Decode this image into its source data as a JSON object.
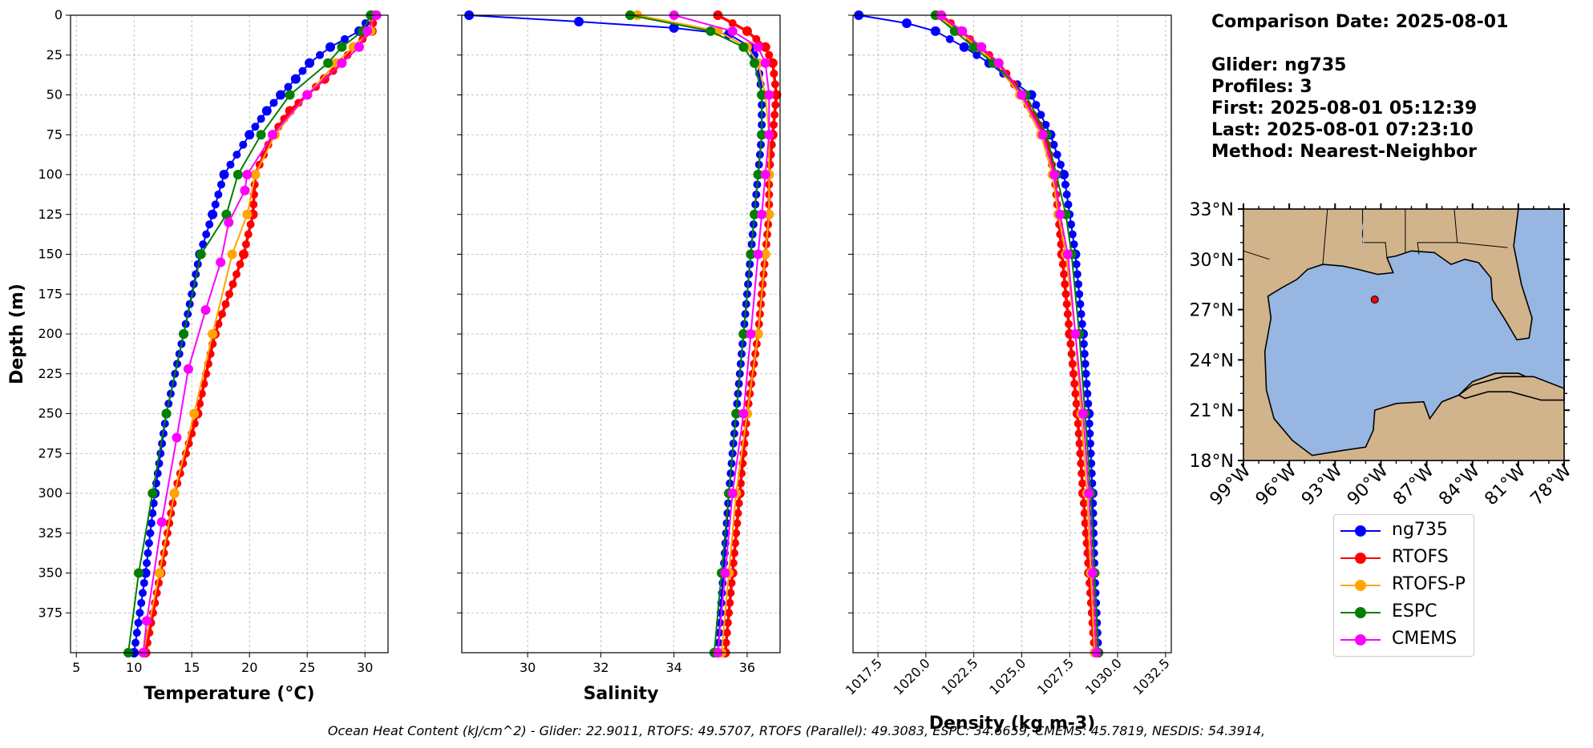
{
  "info": {
    "comparison_date": "Comparison Date: 2025-08-01",
    "glider": "Glider: ng735",
    "profiles": "Profiles: 3",
    "first": "First: 2025-08-01 05:12:39",
    "last": "Last: 2025-08-01 07:23:10",
    "method": "Method: Nearest-Neighbor"
  },
  "footer": "Ocean Heat Content (kJ/cm^2) - Glider: 22.9011,  RTOFS: 49.5707,  RTOFS (Parallel): 49.3083,  ESPC: 34.6659,  CMEMS: 45.7819,  NESDIS: 54.3914,",
  "legend": [
    {
      "name": "ng735",
      "color": "#0000ff"
    },
    {
      "name": "RTOFS",
      "color": "#ff0000"
    },
    {
      "name": "RTOFS-P",
      "color": "#ffa500"
    },
    {
      "name": "ESPC",
      "color": "#008000"
    },
    {
      "name": "CMEMS",
      "color": "#ff00ff"
    }
  ],
  "map": {
    "lat_ticks": [
      "33°N",
      "30°N",
      "27°N",
      "24°N",
      "21°N",
      "18°N"
    ],
    "lon_ticks": [
      "99°W",
      "96°W",
      "93°W",
      "90°W",
      "87°W",
      "84°W",
      "81°W",
      "78°W"
    ],
    "glider_position": {
      "lon": -90.4,
      "lat": 27.6
    },
    "land_color": "#d2b48c",
    "ocean_color": "#97b6e1"
  },
  "chart_data": [
    {
      "type": "line",
      "xlabel": "Temperature (°C)",
      "ylabel": "Depth (m)",
      "xlim": [
        4.5,
        32
      ],
      "ylim": [
        400,
        0
      ],
      "xticks": [
        5,
        10,
        15,
        20,
        25,
        30
      ],
      "yticks": [
        0,
        25,
        50,
        75,
        100,
        125,
        150,
        175,
        200,
        225,
        250,
        275,
        300,
        325,
        350,
        375
      ],
      "grid": true,
      "series": [
        {
          "name": "ng735",
          "color": "#0000ff",
          "depth": [
            0,
            10,
            20,
            30,
            40,
            50,
            60,
            75,
            100,
            125,
            150,
            200,
            250,
            300,
            350,
            400
          ],
          "values": [
            30.6,
            29.5,
            27.0,
            25.2,
            24.0,
            22.7,
            21.5,
            20.0,
            17.8,
            16.8,
            15.7,
            14.3,
            12.8,
            11.8,
            11.0,
            10.0
          ]
        },
        {
          "name": "RTOFS",
          "color": "#ff0000",
          "depth": [
            0,
            10,
            20,
            30,
            40,
            50,
            60,
            75,
            100,
            125,
            150,
            200,
            250,
            300,
            350,
            400
          ],
          "values": [
            30.8,
            30.6,
            29.0,
            28.0,
            26.5,
            25.0,
            23.5,
            22.0,
            20.5,
            20.3,
            19.5,
            17.0,
            15.5,
            13.5,
            12.3,
            11.0
          ]
        },
        {
          "name": "RTOFS-P",
          "color": "#ffa500",
          "depth": [
            0,
            10,
            20,
            30,
            50,
            75,
            100,
            125,
            150,
            200,
            250,
            300,
            350,
            400
          ],
          "values": [
            30.7,
            30.5,
            29.0,
            27.5,
            25.0,
            22.2,
            20.5,
            19.8,
            18.5,
            16.8,
            15.2,
            13.5,
            12.2,
            10.8
          ]
        },
        {
          "name": "ESPC",
          "color": "#008000",
          "depth": [
            0,
            10,
            20,
            30,
            50,
            75,
            100,
            125,
            150,
            200,
            250,
            300,
            350,
            400
          ],
          "values": [
            30.5,
            29.8,
            28.0,
            26.8,
            23.5,
            21.0,
            19.0,
            18.0,
            15.8,
            14.3,
            12.8,
            11.6,
            10.4,
            9.5
          ]
        },
        {
          "name": "CMEMS",
          "color": "#ff00ff",
          "depth": [
            0,
            10,
            20,
            30,
            50,
            75,
            100,
            110,
            130,
            155,
            185,
            222,
            265,
            318,
            380,
            400
          ],
          "values": [
            31.0,
            30.2,
            29.5,
            28.0,
            25.0,
            22.0,
            19.8,
            19.6,
            18.2,
            17.5,
            16.2,
            14.7,
            13.7,
            12.4,
            11.1,
            10.8
          ]
        }
      ]
    },
    {
      "type": "line",
      "xlabel": "Salinity",
      "xlim": [
        28.2,
        36.9
      ],
      "ylim": [
        400,
        0
      ],
      "xticks": [
        30,
        32,
        34,
        36
      ],
      "grid": true,
      "series": [
        {
          "name": "ng735",
          "color": "#0000ff",
          "depth": [
            0,
            4,
            8,
            12,
            20,
            30,
            50,
            75,
            100,
            150,
            200,
            250,
            300,
            350,
            400
          ],
          "values": [
            28.4,
            31.4,
            34.0,
            35.5,
            36.1,
            36.3,
            36.4,
            36.4,
            36.3,
            36.1,
            35.9,
            35.7,
            35.5,
            35.35,
            35.2
          ]
        },
        {
          "name": "RTOFS",
          "color": "#ff0000",
          "depth": [
            0,
            10,
            20,
            30,
            50,
            75,
            100,
            125,
            150,
            200,
            250,
            300,
            350,
            400
          ],
          "values": [
            35.2,
            36.0,
            36.5,
            36.7,
            36.8,
            36.7,
            36.6,
            36.6,
            36.5,
            36.3,
            36.0,
            35.8,
            35.6,
            35.4
          ]
        },
        {
          "name": "RTOFS-P",
          "color": "#ffa500",
          "depth": [
            0,
            10,
            20,
            30,
            50,
            75,
            100,
            125,
            150,
            200,
            250,
            300,
            350,
            400
          ],
          "values": [
            33.0,
            35.2,
            36.0,
            36.3,
            36.5,
            36.6,
            36.6,
            36.6,
            36.5,
            36.3,
            36.0,
            35.7,
            35.5,
            35.3
          ]
        },
        {
          "name": "ESPC",
          "color": "#008000",
          "depth": [
            0,
            10,
            20,
            30,
            50,
            75,
            100,
            125,
            150,
            200,
            250,
            300,
            350,
            400
          ],
          "values": [
            32.8,
            35.0,
            35.9,
            36.2,
            36.4,
            36.4,
            36.3,
            36.2,
            36.1,
            35.9,
            35.7,
            35.5,
            35.3,
            35.1
          ]
        },
        {
          "name": "CMEMS",
          "color": "#ff00ff",
          "depth": [
            0,
            10,
            20,
            30,
            50,
            75,
            100,
            125,
            150,
            200,
            250,
            300,
            350,
            400
          ],
          "values": [
            34.0,
            35.6,
            36.3,
            36.5,
            36.6,
            36.6,
            36.5,
            36.4,
            36.3,
            36.1,
            35.9,
            35.6,
            35.4,
            35.2
          ]
        }
      ]
    },
    {
      "type": "line",
      "xlabel": "Density (kg m-3)",
      "xlim": [
        1016.2,
        1032.8
      ],
      "ylim": [
        400,
        0
      ],
      "xticks": [
        1017.5,
        1020.0,
        1022.5,
        1025.0,
        1027.5,
        1030.0,
        1032.5
      ],
      "grid": true,
      "series": [
        {
          "name": "ng735",
          "color": "#0000ff",
          "depth": [
            0,
            5,
            10,
            20,
            30,
            50,
            75,
            100,
            150,
            200,
            250,
            300,
            350,
            400
          ],
          "values": [
            1016.5,
            1019.0,
            1020.5,
            1022.0,
            1023.3,
            1025.5,
            1026.5,
            1027.2,
            1027.8,
            1028.2,
            1028.5,
            1028.7,
            1028.8,
            1029.0
          ]
        },
        {
          "name": "RTOFS",
          "color": "#ff0000",
          "depth": [
            0,
            10,
            20,
            30,
            50,
            75,
            100,
            125,
            150,
            200,
            250,
            300,
            350,
            400
          ],
          "values": [
            1020.8,
            1021.8,
            1022.8,
            1023.8,
            1025.0,
            1026.2,
            1026.7,
            1026.9,
            1027.1,
            1027.5,
            1027.9,
            1028.2,
            1028.5,
            1028.8
          ]
        },
        {
          "name": "RTOFS-P",
          "color": "#ffa500",
          "depth": [
            0,
            10,
            20,
            30,
            50,
            75,
            100,
            125,
            150,
            200,
            250,
            300,
            350,
            400
          ],
          "values": [
            1020.6,
            1021.7,
            1022.7,
            1023.6,
            1024.9,
            1026.0,
            1026.6,
            1026.9,
            1027.3,
            1027.8,
            1028.1,
            1028.4,
            1028.6,
            1028.8
          ]
        },
        {
          "name": "ESPC",
          "color": "#008000",
          "depth": [
            0,
            10,
            20,
            30,
            50,
            75,
            100,
            125,
            150,
            200,
            250,
            300,
            350,
            400
          ],
          "values": [
            1020.5,
            1021.5,
            1022.5,
            1023.5,
            1025.2,
            1026.3,
            1026.8,
            1027.3,
            1027.6,
            1028.0,
            1028.3,
            1028.6,
            1028.8,
            1029.0
          ]
        },
        {
          "name": "CMEMS",
          "color": "#ff00ff",
          "depth": [
            0,
            10,
            20,
            30,
            50,
            75,
            100,
            125,
            150,
            200,
            250,
            300,
            350,
            400
          ],
          "values": [
            1020.8,
            1021.9,
            1022.9,
            1023.8,
            1025.0,
            1026.1,
            1026.7,
            1027.0,
            1027.4,
            1027.8,
            1028.2,
            1028.5,
            1028.7,
            1028.9
          ]
        }
      ]
    }
  ]
}
